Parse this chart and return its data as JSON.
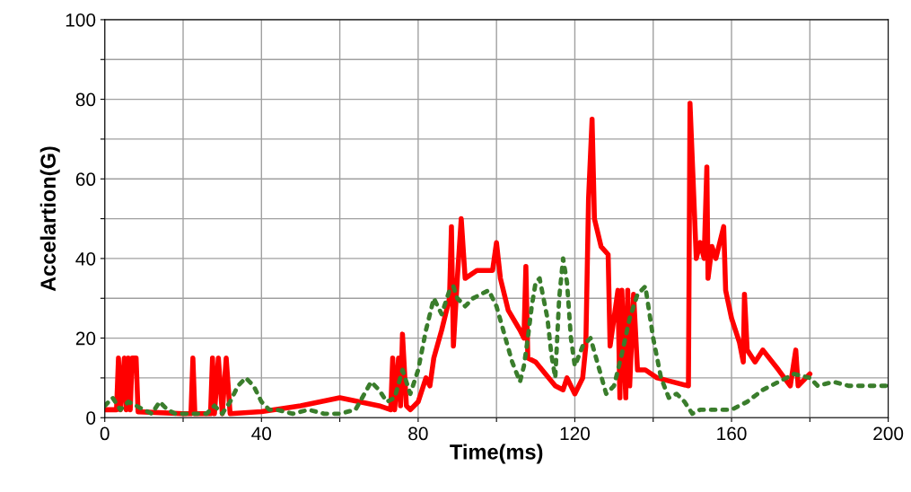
{
  "chart_data": {
    "type": "line",
    "xlabel": "Time(ms)",
    "ylabel": "Accelartion(G)",
    "xlim": [
      0,
      200
    ],
    "ylim": [
      0,
      100
    ],
    "xticks": [
      0,
      {
        "value": 20,
        "label": null
      },
      40,
      {
        "value": 60,
        "label": null
      },
      80,
      {
        "value": 100,
        "label": null
      },
      120,
      {
        "value": 140,
        "label": null
      },
      160,
      {
        "value": 180,
        "label": null
      },
      200
    ],
    "yticks": [
      0,
      {
        "value": 10,
        "label": null
      },
      20,
      {
        "value": 30,
        "label": null
      },
      40,
      {
        "value": 50,
        "label": null
      },
      60,
      {
        "value": 70,
        "label": null
      },
      80,
      {
        "value": 90,
        "label": null
      },
      100
    ],
    "grid": true,
    "legend": false,
    "series": [
      {
        "color": "#ff0000",
        "line_style": "solid",
        "x": [
          0,
          3,
          3.5,
          4,
          5,
          5.5,
          6,
          6.5,
          7,
          8,
          8.5,
          20,
          22,
          22.5,
          23,
          27,
          27.5,
          28,
          29,
          30,
          31,
          32,
          40,
          50,
          60,
          65,
          70,
          73,
          73.5,
          74,
          75,
          75.5,
          76,
          77,
          78,
          80,
          82,
          83,
          84,
          86,
          88,
          88.5,
          89,
          90,
          91,
          92,
          95,
          99,
          100,
          101,
          103,
          106,
          107,
          107.5,
          108,
          110,
          115,
          117,
          118,
          120,
          122,
          122.8,
          123.5,
          124.4,
          125,
          126.7,
          128.5,
          129,
          131,
          131.5,
          132,
          133,
          133.5,
          134,
          135,
          136,
          138,
          141,
          145,
          149,
          149.4,
          151,
          152,
          153,
          153.7,
          154,
          155,
          156,
          158,
          158.5,
          160,
          162,
          163,
          163.3,
          164,
          166,
          168,
          172,
          175,
          176.4,
          177,
          179,
          180
        ],
        "values": [
          2,
          2,
          15,
          2,
          15,
          2,
          15,
          2,
          15,
          15,
          1.5,
          1,
          1,
          15,
          1,
          1,
          15,
          1,
          15,
          1,
          15,
          1,
          1.5,
          3,
          5,
          4,
          3,
          2,
          15,
          2,
          15,
          3,
          21,
          3,
          2,
          4,
          10,
          8,
          15,
          22,
          30,
          48,
          18,
          35,
          50,
          35,
          37,
          37,
          44,
          35,
          27,
          22,
          20,
          38,
          15,
          14,
          8,
          7,
          10,
          6,
          10,
          18,
          55,
          75,
          50,
          43,
          41,
          18,
          32,
          5,
          32,
          5,
          32,
          8,
          31,
          12,
          12,
          10,
          9,
          8,
          79,
          40,
          44,
          40,
          63,
          35,
          43,
          40,
          48,
          32,
          25,
          19,
          14,
          31,
          17,
          14,
          17,
          12,
          8,
          17,
          8,
          10,
          11
        ]
      },
      {
        "color": "#3a7d2c",
        "line_style": "dotted",
        "x": [
          0,
          2,
          4,
          6,
          8,
          10,
          12,
          14,
          16,
          18,
          20,
          22,
          24,
          26,
          28,
          30,
          32,
          34,
          36,
          38,
          40,
          42,
          44,
          48,
          52,
          56,
          60,
          64,
          68,
          70,
          72,
          74,
          76,
          78,
          80,
          81,
          82,
          84,
          86,
          88,
          89,
          90,
          92,
          94,
          96,
          98,
          100,
          102,
          104,
          106,
          107,
          108,
          109,
          110,
          111,
          112,
          113,
          114,
          115,
          116,
          117,
          118,
          119,
          120,
          122,
          124,
          126,
          128,
          130,
          132,
          134,
          136,
          138,
          140,
          142,
          144,
          146,
          148,
          150,
          152,
          156,
          160,
          164,
          168,
          172,
          176,
          180,
          182,
          186,
          190,
          195,
          200
        ],
        "values": [
          3,
          5,
          2,
          4,
          3,
          2,
          1,
          4,
          2,
          1,
          1,
          1,
          1,
          1,
          3,
          1,
          4,
          8,
          10,
          8,
          4,
          2,
          2,
          1,
          2,
          1,
          1,
          2,
          9,
          7,
          4,
          5,
          12,
          6,
          12,
          17,
          22,
          30,
          26,
          32,
          33,
          30,
          28,
          30,
          31,
          32,
          28,
          21,
          14,
          9,
          13,
          20,
          28,
          34,
          35,
          30,
          25,
          16,
          10,
          30,
          40,
          34,
          20,
          13,
          18,
          20,
          13,
          6,
          8,
          16,
          25,
          31,
          33,
          20,
          10,
          5,
          6,
          4,
          1,
          2,
          2,
          2,
          4,
          7,
          9,
          11,
          10,
          8,
          9,
          8,
          8,
          8
        ]
      }
    ]
  }
}
